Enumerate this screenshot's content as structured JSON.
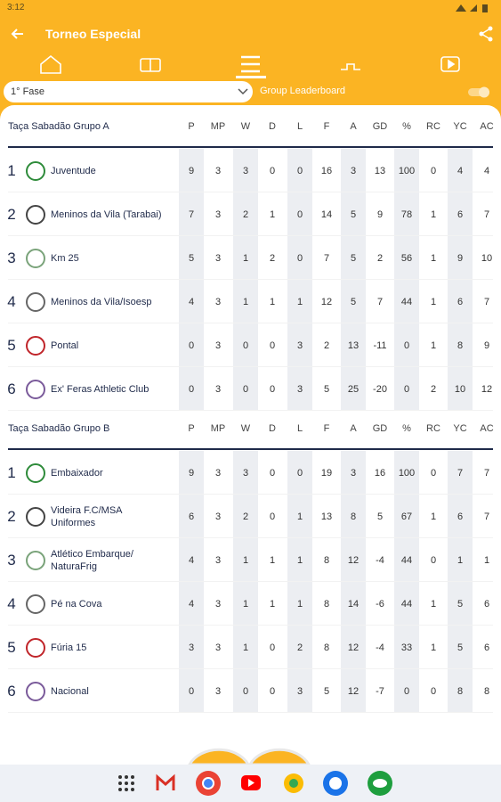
{
  "status_bar": {
    "time": "3:12"
  },
  "header": {
    "title": "Torneo Especial"
  },
  "filter": {
    "phase": "1° Fase",
    "toggle_label": "Group Leaderboard"
  },
  "groups": [
    {
      "name": "Taça Sabadão Grupo A",
      "columns": [
        "P",
        "MP",
        "W",
        "D",
        "L",
        "F",
        "A",
        "GD",
        "%",
        "RC",
        "YC",
        "AC"
      ],
      "rows": [
        {
          "rank": 1,
          "team": "Juventude",
          "stats": [
            9,
            3,
            3,
            0,
            0,
            16,
            3,
            13,
            100,
            0,
            4,
            4
          ]
        },
        {
          "rank": 2,
          "team": "Meninos da Vila (Tarabai)",
          "stats": [
            7,
            3,
            2,
            1,
            0,
            14,
            5,
            9,
            78,
            1,
            6,
            7
          ]
        },
        {
          "rank": 3,
          "team": "Km 25",
          "stats": [
            5,
            3,
            1,
            2,
            0,
            7,
            5,
            2,
            56,
            1,
            9,
            10
          ]
        },
        {
          "rank": 4,
          "team": "Meninos da Vila/Isoesp",
          "stats": [
            4,
            3,
            1,
            1,
            1,
            12,
            5,
            7,
            44,
            1,
            6,
            7
          ]
        },
        {
          "rank": 5,
          "team": "Pontal",
          "stats": [
            0,
            3,
            0,
            0,
            3,
            2,
            13,
            -11,
            0,
            1,
            8,
            9
          ]
        },
        {
          "rank": 6,
          "team": "Ex' Feras Athletic Club",
          "stats": [
            0,
            3,
            0,
            0,
            3,
            5,
            25,
            -20,
            0,
            2,
            10,
            12
          ]
        }
      ]
    },
    {
      "name": "Taça Sabadão Grupo B",
      "columns": [
        "P",
        "MP",
        "W",
        "D",
        "L",
        "F",
        "A",
        "GD",
        "%",
        "RC",
        "YC",
        "AC"
      ],
      "rows": [
        {
          "rank": 1,
          "team": "Embaixador",
          "stats": [
            9,
            3,
            3,
            0,
            0,
            19,
            3,
            16,
            100,
            0,
            7,
            7
          ]
        },
        {
          "rank": 2,
          "team": "Videira F.C/MSA Uniformes",
          "stats": [
            6,
            3,
            2,
            0,
            1,
            13,
            8,
            5,
            67,
            1,
            6,
            7
          ]
        },
        {
          "rank": 3,
          "team": "Atlético Embarque/ NaturaFrig",
          "stats": [
            4,
            3,
            1,
            1,
            1,
            8,
            12,
            -4,
            44,
            0,
            1,
            1
          ]
        },
        {
          "rank": 4,
          "team": "Pé na Cova",
          "stats": [
            4,
            3,
            1,
            1,
            1,
            8,
            14,
            -6,
            44,
            1,
            5,
            6
          ]
        },
        {
          "rank": 5,
          "team": "Fúria 15",
          "stats": [
            3,
            3,
            1,
            0,
            2,
            8,
            12,
            -4,
            33,
            1,
            5,
            6
          ]
        },
        {
          "rank": 6,
          "team": "Nacional",
          "stats": [
            0,
            3,
            0,
            0,
            3,
            5,
            12,
            -7,
            0,
            0,
            8,
            8
          ]
        }
      ]
    }
  ]
}
